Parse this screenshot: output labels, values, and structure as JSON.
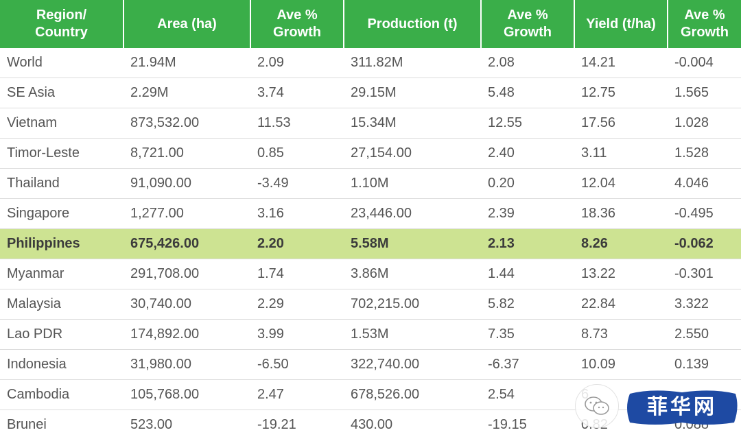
{
  "colors": {
    "header_bg": "#3aae49",
    "header_text": "#ffffff",
    "highlight_row_bg": "#cde392",
    "cell_text": "#555555",
    "row_divider": "#dcdcdc",
    "watermark_banner": "#1e4aa3"
  },
  "table": {
    "headers": [
      {
        "line1": "Region/",
        "line2": "Country"
      },
      {
        "line1": "Area (ha)",
        "line2": ""
      },
      {
        "line1": "Ave %",
        "line2": "Growth"
      },
      {
        "line1": "Production (t)",
        "line2": ""
      },
      {
        "line1": "Ave %",
        "line2": "Growth"
      },
      {
        "line1": "Yield (t/ha)",
        "line2": ""
      },
      {
        "line1": "Ave %",
        "line2": "Growth"
      }
    ],
    "highlighted_row": "Philippines",
    "rows": [
      [
        "World",
        "21.94M",
        "2.09",
        "311.82M",
        "2.08",
        "14.21",
        "-0.004"
      ],
      [
        "SE Asia",
        "2.29M",
        "3.74",
        "29.15M",
        "5.48",
        "12.75",
        "1.565"
      ],
      [
        "Vietnam",
        "873,532.00",
        "11.53",
        "15.34M",
        "12.55",
        "17.56",
        "1.028"
      ],
      [
        "Timor-Leste",
        "8,721.00",
        "0.85",
        "27,154.00",
        "2.40",
        "3.11",
        "1.528"
      ],
      [
        "Thailand",
        "91,090.00",
        "-3.49",
        "1.10M",
        "0.20",
        "12.04",
        "4.046"
      ],
      [
        "Singapore",
        "1,277.00",
        "3.16",
        "23,446.00",
        "2.39",
        "18.36",
        "-0.495"
      ],
      [
        "Philippines",
        "675,426.00",
        "2.20",
        "5.58M",
        "2.13",
        "8.26",
        "-0.062"
      ],
      [
        "Myanmar",
        "291,708.00",
        "1.74",
        "3.86M",
        "1.44",
        "13.22",
        "-0.301"
      ],
      [
        "Malaysia",
        "30,740.00",
        "2.29",
        "702,215.00",
        "5.82",
        "22.84",
        "3.322"
      ],
      [
        "Lao PDR",
        "174,892.00",
        "3.99",
        "1.53M",
        "7.35",
        "8.73",
        "2.550"
      ],
      [
        "Indonesia",
        "31,980.00",
        "-6.50",
        "322,740.00",
        "-6.37",
        "10.09",
        "0.139"
      ],
      [
        "Cambodia",
        "105,768.00",
        "2.47",
        "678,526.00",
        "2.54",
        "6.",
        ""
      ],
      [
        "Brunei",
        "523.00",
        "-19.21",
        "430.00",
        "-19.15",
        "0.82",
        "0.088"
      ]
    ]
  },
  "watermark": {
    "text": "菲华网",
    "icon": "wechat-icon"
  }
}
